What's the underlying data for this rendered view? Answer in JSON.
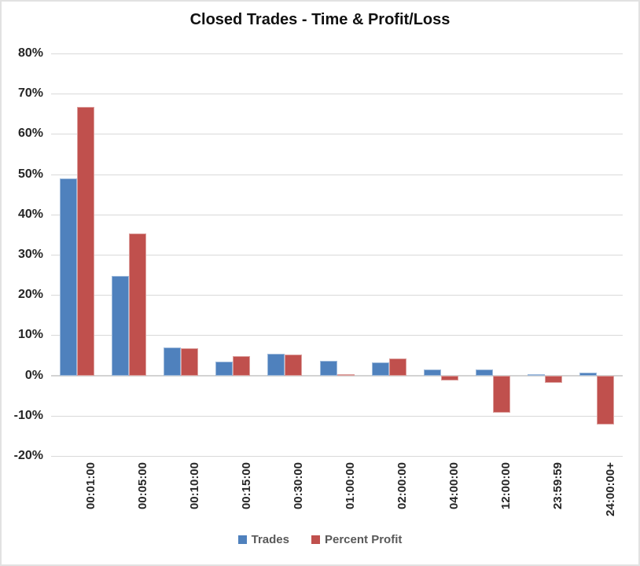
{
  "title": "Closed Trades - Time & Profit/Loss",
  "chart_data": {
    "type": "bar",
    "title": "Closed Trades - Time & Profit/Loss",
    "categories": [
      "00:01:00",
      "00:05:00",
      "00:10:00",
      "00:15:00",
      "00:30:00",
      "01:00:00",
      "02:00:00",
      "04:00:00",
      "12:00:00",
      "23:59:59",
      "24:00:00+"
    ],
    "series": [
      {
        "name": "Trades",
        "color": "#4f81bd",
        "values": [
          49.0,
          24.7,
          6.9,
          3.4,
          5.3,
          3.6,
          3.2,
          1.5,
          1.4,
          0.3,
          0.8
        ]
      },
      {
        "name": "Percent Profit",
        "color": "#c0504d",
        "values": [
          66.8,
          35.3,
          6.7,
          4.9,
          5.2,
          0.4,
          4.3,
          -1.2,
          -9.3,
          -1.8,
          -12.2
        ]
      }
    ],
    "xlabel": "",
    "ylabel": "",
    "ylim": [
      -20,
      80
    ],
    "ytick_step": 10,
    "ytick_format": "percent",
    "grid": true,
    "legend_position": "bottom"
  },
  "colors": {
    "gridline": "#d9d9d9",
    "zero_axis": "#d3d3d3",
    "tick_text": "#262626",
    "legend_text": "#595959"
  }
}
